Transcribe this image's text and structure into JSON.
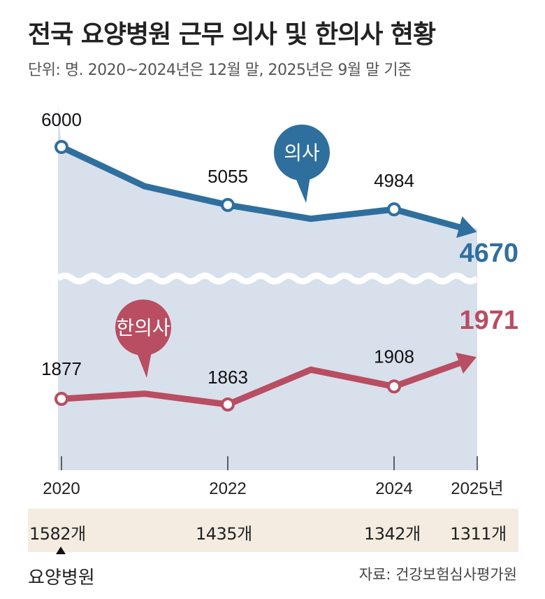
{
  "title": "전국 요양병원 근무 의사 및 한의사 현황",
  "subtitle": "단위: 명. 2020~2024년은 12월 말, 2025년은 9월 말 기준",
  "chart_data": {
    "type": "line",
    "title": "전국 요양병원 근무 의사 및 한의사 현황",
    "x": [
      2020,
      2021,
      2022,
      2023,
      2024,
      2025
    ],
    "x_tick_labels": [
      "2020",
      "2022",
      "2024",
      "2025년"
    ],
    "y_axis_broken": true,
    "series": [
      {
        "name": "의사",
        "color": "#2f6f9e",
        "values": [
          6000,
          5360,
          5055,
          4830,
          4984,
          4670
        ],
        "labels": [
          "6000",
          "",
          "5055",
          "",
          "4984",
          "4670"
        ]
      },
      {
        "name": "한의사",
        "color": "#b94d62",
        "values": [
          1877,
          1890,
          1863,
          1950,
          1908,
          1971
        ],
        "labels": [
          "1877",
          "",
          "1863",
          "",
          "1908",
          "1971"
        ]
      }
    ],
    "hospital_counts": {
      "label": "요양병원",
      "values": [
        {
          "year": "2020",
          "text": "1582개"
        },
        {
          "year": "2022",
          "text": "1435개"
        },
        {
          "year": "2024",
          "text": "1342개"
        },
        {
          "year": "2025",
          "text": "1311개"
        }
      ]
    }
  },
  "source": "자료: 건강보험심사평가원",
  "colors": {
    "area": "#d8e0ec",
    "band": "#f4ece1"
  }
}
